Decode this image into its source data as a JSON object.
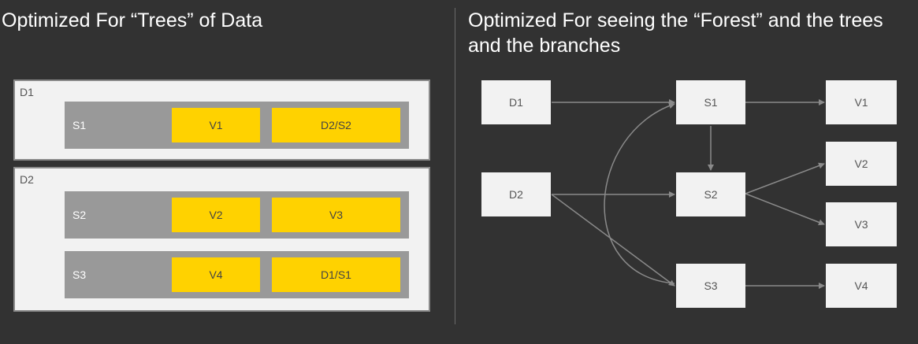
{
  "left_title": "Optimized For “Trees” of Data",
  "right_title": "Optimized For seeing the “Forest” and the trees and the branches",
  "tree": {
    "d1": {
      "label": "D1",
      "s1": {
        "label": "S1",
        "items": [
          "V1",
          "D2/S2"
        ]
      }
    },
    "d2": {
      "label": "D2",
      "s2": {
        "label": "S2",
        "items": [
          "V2",
          "V3"
        ]
      },
      "s3": {
        "label": "S3",
        "items": [
          "V4",
          "D1/S1"
        ]
      }
    }
  },
  "graph": {
    "nodes": {
      "d1": "D1",
      "d2": "D2",
      "s1": "S1",
      "s2": "S2",
      "s3": "S3",
      "v1": "V1",
      "v2": "V2",
      "v3": "V3",
      "v4": "V4"
    },
    "edges": [
      [
        "D1",
        "S1"
      ],
      [
        "D1",
        "S3"
      ],
      [
        "D2",
        "S2"
      ],
      [
        "D2",
        "S3"
      ],
      [
        "S1",
        "V1"
      ],
      [
        "S1",
        "S2"
      ],
      [
        "S2",
        "V2"
      ],
      [
        "S2",
        "V3"
      ],
      [
        "S3",
        "V4"
      ]
    ]
  },
  "colors": {
    "background": "#323232",
    "box": "#f2f2f2",
    "inner": "#999999",
    "highlight": "#ffd200",
    "arrow": "#8a8a8a"
  }
}
